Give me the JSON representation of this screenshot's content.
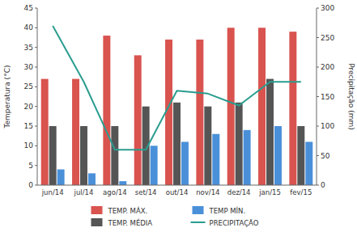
{
  "chart_data": {
    "type": "bar",
    "categories": [
      "jun/14",
      "jul/14",
      "ago/14",
      "set/14",
      "out/14",
      "nov/14",
      "dez/14",
      "jan/15",
      "fev/15"
    ],
    "series": [
      {
        "name": "TEMP. MÁX.",
        "color": "#d9534f",
        "values": [
          27,
          27,
          38,
          33,
          37,
          37,
          40,
          40,
          39
        ]
      },
      {
        "name": "TEMP MÍN.",
        "color": "#4a90d9",
        "values": [
          4,
          3,
          1,
          10,
          11,
          13,
          14,
          15,
          11
        ]
      },
      {
        "name": "TEMP. MÉDIA",
        "color": "#555555",
        "values": [
          15,
          15,
          15,
          20,
          21,
          20,
          21,
          27,
          15
        ]
      },
      {
        "name": "PRECIPITAÇÃO",
        "type": "line",
        "axis": "y2",
        "color": "#2a9d8f",
        "values": [
          270,
          175,
          60,
          60,
          160,
          155,
          135,
          175,
          175
        ]
      }
    ],
    "ylim": [
      0,
      45
    ],
    "yticks": [
      0,
      5,
      10,
      15,
      20,
      25,
      30,
      35,
      40,
      45
    ],
    "y2lim": [
      0,
      300
    ],
    "y2ticks": [
      0,
      50,
      100,
      150,
      200,
      250,
      300
    ],
    "ylabel": "Temperatura (°C)",
    "y2label": "Precipitação (mm)",
    "grid": false,
    "legend": "bottom"
  }
}
